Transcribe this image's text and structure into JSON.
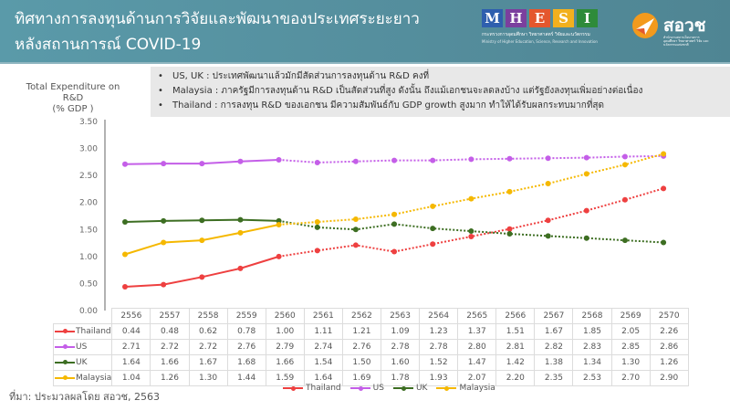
{
  "header": {
    "title_line1": "ทิศทางการลงทุนด้านการวิจัยและพัฒนาของประเทศระยะยาว",
    "title_line2": "หลังสถานการณ์ COVID-19",
    "logos": {
      "mhesi": {
        "letters": [
          "M",
          "H",
          "E",
          "S",
          "I"
        ],
        "colors": [
          "#2e5fae",
          "#7b3f9e",
          "#e4572e",
          "#f2b01e",
          "#2e8b3a"
        ],
        "thai": "กระทรวงการอุดมศึกษา วิทยาศาสตร์ วิจัยและนวัตกรรม",
        "english": "Ministry of Higher Education, Science, Research and Innovation"
      },
      "ora": {
        "name": "สอวช",
        "subtitle": "สำนักงานสภานโยบายการอุดมศึกษา วิทยาศาสตร์ วิจัย และนวัตกรรมแห่งชาติ"
      }
    }
  },
  "notes": [
    {
      "bullet": "•",
      "text": "US, UK : ประเทศพัฒนาแล้วมักมีสัดส่วนการลงทุนด้าน R&D คงที่"
    },
    {
      "bullet": "•",
      "text": "Malaysia : ภาครัฐมีการลงทุนด้าน R&D เป็นสัดส่วนที่สูง ดังนั้น ถึงแม้เอกชนจะลดลงบ้าง แต่รัฐยังลงทุนเพิ่มอย่างต่อเนื่อง"
    },
    {
      "bullet": "•",
      "text": "Thailand : การลงทุน R&D ของเอกชน มีความสัมพันธ์กับ GDP growth สูงมาก ทำให้ได้รับผลกระทบมากที่สุด"
    }
  ],
  "source": "ที่มา: ประมวลผลโดย สอวช, 2563",
  "chart_data": {
    "type": "line",
    "title": "ทิศทางการลงทุนด้านการวิจัยและพัฒนาของประเทศระยะยาว หลังสถานการณ์ COVID-19",
    "ylabel": "Total Expenditure on R&D (% GDP )",
    "ylabel_line1": "Total Expenditure on R&D",
    "ylabel_line2": "(% GDP )",
    "xlabel": "",
    "ylim": [
      0,
      3.5
    ],
    "yticks": [
      "3.50",
      "3.00",
      "2.50",
      "2.00",
      "1.50",
      "1.00",
      "0.50",
      "0.00"
    ],
    "grid": false,
    "legend_position": "bottom",
    "actual_until": "2560",
    "projection_style": "dotted",
    "categories": [
      "2556",
      "2557",
      "2558",
      "2559",
      "2560",
      "2561",
      "2562",
      "2563",
      "2564",
      "2565",
      "2566",
      "2567",
      "2568",
      "2569",
      "2570"
    ],
    "series": [
      {
        "name": "Thailand",
        "color": "#ee4040",
        "values": [
          0.44,
          0.48,
          0.62,
          0.78,
          1.0,
          1.11,
          1.21,
          1.09,
          1.23,
          1.37,
          1.51,
          1.67,
          1.85,
          2.05,
          2.26
        ]
      },
      {
        "name": "US",
        "color": "#c45ee8",
        "values": [
          2.71,
          2.72,
          2.72,
          2.76,
          2.79,
          2.74,
          2.76,
          2.78,
          2.78,
          2.8,
          2.81,
          2.82,
          2.83,
          2.85,
          2.86
        ]
      },
      {
        "name": "UK",
        "color": "#3d6e22",
        "values": [
          1.64,
          1.66,
          1.67,
          1.68,
          1.66,
          1.54,
          1.5,
          1.6,
          1.52,
          1.47,
          1.42,
          1.38,
          1.34,
          1.3,
          1.26
        ]
      },
      {
        "name": "Malaysia",
        "color": "#f5b800",
        "values": [
          1.04,
          1.26,
          1.3,
          1.44,
          1.59,
          1.64,
          1.69,
          1.78,
          1.93,
          2.07,
          2.2,
          2.35,
          2.53,
          2.7,
          2.9
        ]
      }
    ],
    "value_labels": {
      "Thailand": [
        "0.44",
        "0.48",
        "0.62",
        "0.78",
        "1.00",
        "1.11",
        "1.21",
        "1.09",
        "1.23",
        "1.37",
        "1.51",
        "1.67",
        "1.85",
        "2.05",
        "2.26"
      ],
      "US": [
        "2.71",
        "2.72",
        "2.72",
        "2.76",
        "2.79",
        "2.74",
        "2.76",
        "2.78",
        "2.78",
        "2.80",
        "2.81",
        "2.82",
        "2.83",
        "2.85",
        "2.86"
      ],
      "UK": [
        "1.64",
        "1.66",
        "1.67",
        "1.68",
        "1.66",
        "1.54",
        "1.50",
        "1.60",
        "1.52",
        "1.47",
        "1.42",
        "1.38",
        "1.34",
        "1.30",
        "1.26"
      ],
      "Malaysia": [
        "1.04",
        "1.26",
        "1.30",
        "1.44",
        "1.59",
        "1.64",
        "1.69",
        "1.78",
        "1.93",
        "2.07",
        "2.20",
        "2.35",
        "2.53",
        "2.70",
        "2.90"
      ]
    }
  }
}
